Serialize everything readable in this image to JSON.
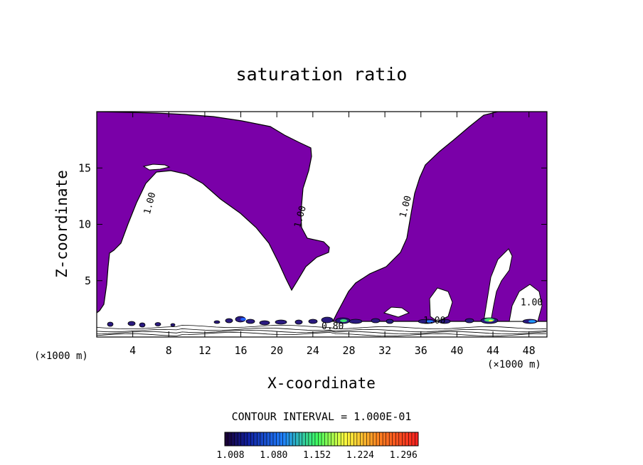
{
  "chart_data": {
    "type": "contour",
    "title": "saturation ratio",
    "xlabel": "X-coordinate",
    "ylabel": "Z-coordinate",
    "x_unit": "(×1000 m)",
    "x_ticks": [
      4,
      8,
      12,
      16,
      20,
      24,
      28,
      32,
      36,
      40,
      44,
      48
    ],
    "y_ticks": [
      5,
      10,
      15
    ],
    "xlim": [
      0,
      50
    ],
    "ylim": [
      0,
      20
    ],
    "contour_interval_text": "CONTOUR INTERVAL = 1.000E-01",
    "fill_color": "#7a00a8",
    "contour_labels": [
      {
        "text": "1.00",
        "x": 6.2,
        "z": 11.8
      },
      {
        "text": "1.00",
        "x": 22.9,
        "z": 10.6
      },
      {
        "text": "1.00",
        "x": 34.6,
        "z": 11.5
      },
      {
        "text": "0.80",
        "x": 26.2,
        "z": 0.7
      },
      {
        "text": "1.00",
        "x": 37.5,
        "z": 1.2
      },
      {
        "text": "1.00",
        "x": 48.3,
        "z": 2.8
      }
    ],
    "colorbar": {
      "min": 1.008,
      "max": 1.33,
      "tick_labels": [
        "1.008",
        "1.080",
        "1.152",
        "1.224",
        "1.296"
      ],
      "tick_values": [
        1.008,
        1.08,
        1.152,
        1.224,
        1.296
      ],
      "colors": [
        "#1a0030",
        "#1020a0",
        "#2080ff",
        "#40ff60",
        "#ffff40",
        "#ff8020",
        "#ff2020"
      ]
    },
    "grid": false,
    "legend": "colorbar-bottom"
  }
}
